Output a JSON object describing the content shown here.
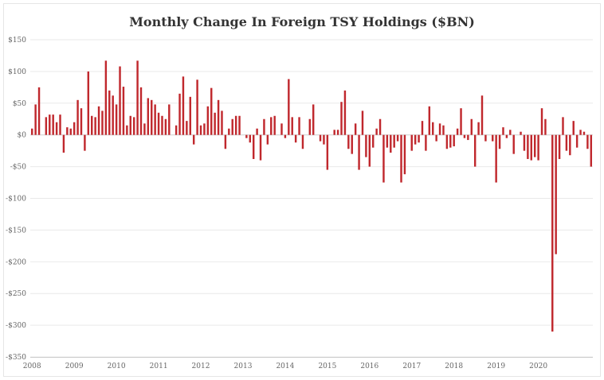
{
  "chart_data": {
    "type": "bar",
    "title": "Monthly Change In Foreign TSY Holdings  ($BN)",
    "xlabel": "",
    "ylabel": "",
    "ylim": [
      -350,
      150
    ],
    "y_ticks": [
      150,
      100,
      50,
      0,
      -50,
      -100,
      -150,
      -200,
      -250,
      -300,
      -350
    ],
    "y_tick_labels": [
      "$150",
      "$100",
      "$50",
      "$0",
      "-$50",
      "-$100",
      "-$150",
      "-$200",
      "-$250",
      "-$300",
      "-$350"
    ],
    "x_tick_labels": [
      "2008",
      "2009",
      "2010",
      "2011",
      "2012",
      "2013",
      "2014",
      "2015",
      "2016",
      "2017",
      "2018",
      "2019",
      "2020"
    ],
    "gridlines": true,
    "bar_color": "#c0282d",
    "series": [
      {
        "name": "Monthly Change ($BN)",
        "start": "2008-01",
        "values": [
          10,
          48,
          75,
          0,
          28,
          32,
          32,
          20,
          32,
          -28,
          12,
          10,
          20,
          55,
          42,
          -25,
          100,
          30,
          28,
          45,
          38,
          117,
          70,
          62,
          48,
          108,
          76,
          15,
          30,
          28,
          117,
          75,
          18,
          58,
          55,
          48,
          35,
          30,
          25,
          48,
          0,
          15,
          65,
          92,
          22,
          60,
          -15,
          87,
          15,
          18,
          45,
          74,
          35,
          55,
          38,
          -22,
          10,
          25,
          30,
          30,
          0,
          -5,
          -12,
          -38,
          10,
          -40,
          25,
          -15,
          28,
          30,
          0,
          18,
          -5,
          88,
          28,
          -12,
          28,
          -22,
          0,
          25,
          48,
          0,
          -10,
          -15,
          -55,
          0,
          8,
          8,
          52,
          70,
          -22,
          -30,
          18,
          -55,
          38,
          -35,
          -50,
          -20,
          10,
          25,
          -75,
          -20,
          -28,
          -20,
          -10,
          -75,
          -62,
          0,
          -25,
          -15,
          -12,
          22,
          -25,
          45,
          20,
          -10,
          18,
          15,
          -22,
          -20,
          -18,
          10,
          42,
          -5,
          -8,
          25,
          -50,
          20,
          62,
          -10,
          0,
          -10,
          -75,
          -22,
          12,
          -5,
          8,
          -30,
          0,
          5,
          -25,
          -38,
          -40,
          -35,
          -40,
          42,
          25,
          0,
          -310,
          -188,
          -38,
          28,
          -25,
          -32,
          22,
          -20,
          8,
          5,
          -22,
          -50
        ]
      }
    ]
  }
}
